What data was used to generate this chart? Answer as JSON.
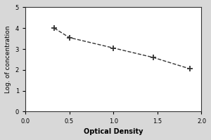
{
  "x_data": [
    0.33,
    0.5,
    1.0,
    1.45,
    1.87
  ],
  "y_data": [
    4.0,
    3.55,
    3.05,
    2.6,
    2.05
  ],
  "xlabel": "Optical Density",
  "ylabel": "Log. of concentration",
  "xlim": [
    0,
    2
  ],
  "ylim": [
    0,
    5
  ],
  "xticks": [
    0,
    0.5,
    1,
    1.5,
    2
  ],
  "yticks": [
    0,
    1,
    2,
    3,
    4,
    5
  ],
  "line_color": "#333333",
  "marker": "+",
  "linestyle": "--",
  "linewidth": 1.0,
  "markersize": 6,
  "markeredgewidth": 1.3,
  "figure_bg_color": "#d8d8d8",
  "axes_bg_color": "#ffffff",
  "xlabel_fontsize": 7,
  "ylabel_fontsize": 6.5,
  "tick_fontsize": 6
}
